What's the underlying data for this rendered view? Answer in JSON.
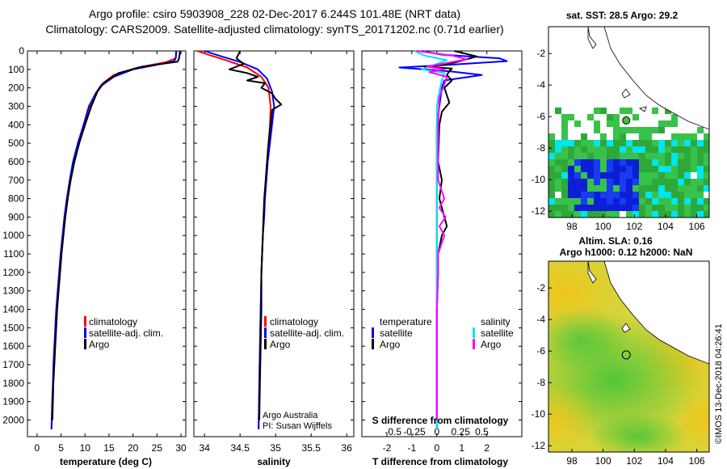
{
  "title_line1": "Argo profile: csiro 5903908_228 02-Dec-2017 6.244S 101.48E (NRT data)",
  "title_line2": "Climatology: CARS2009. Satellite-adjusted climatology: synTS_20171202.nc (0.71d earlier)",
  "colors": {
    "climatology": "#ff0000",
    "satellite": "#0000ff",
    "argo": "#000000",
    "sal_satellite": "#00e5ee",
    "sal_argo": "#ff00ff"
  },
  "chart_data": [
    {
      "type": "line",
      "xlabel": "temperature (deg C)",
      "xlim": [
        -2,
        31
      ],
      "xticks": [
        0,
        5,
        10,
        15,
        20,
        25,
        30
      ],
      "ylim": [
        2090,
        0
      ],
      "yticks": [
        0,
        100,
        200,
        300,
        400,
        500,
        600,
        700,
        800,
        900,
        1000,
        1100,
        1200,
        1300,
        1400,
        1500,
        1600,
        1700,
        1800,
        1900,
        2000
      ],
      "legend": [
        "climatology",
        "satellite-adj. clim.",
        "Argo"
      ],
      "series": [
        {
          "name": "climatology",
          "color": "#ff0000",
          "points": [
            [
              29.1,
              0
            ],
            [
              28.9,
              40
            ],
            [
              27,
              60
            ],
            [
              21,
              90
            ],
            [
              16,
              130
            ],
            [
              13.5,
              180
            ],
            [
              12.2,
              230
            ],
            [
              11,
              300
            ],
            [
              9.8,
              400
            ],
            [
              8.6,
              500
            ],
            [
              7.6,
              600
            ],
            [
              6.9,
              700
            ],
            [
              6.3,
              800
            ],
            [
              5.8,
              900
            ],
            [
              5.4,
              1000
            ],
            [
              5.0,
              1100
            ],
            [
              4.7,
              1200
            ],
            [
              4.4,
              1300
            ],
            [
              4.1,
              1400
            ],
            [
              3.9,
              1500
            ],
            [
              3.7,
              1600
            ],
            [
              3.5,
              1700
            ],
            [
              3.35,
              1800
            ],
            [
              3.2,
              1900
            ],
            [
              3.1,
              2000
            ],
            [
              3.0,
              2050
            ]
          ]
        },
        {
          "name": "satellite-adj. clim.",
          "color": "#0000ff",
          "points": [
            [
              29.0,
              0
            ],
            [
              28.9,
              40
            ],
            [
              28.6,
              55
            ],
            [
              24,
              80
            ],
            [
              20,
              100
            ],
            [
              16,
              140
            ],
            [
              13.3,
              190
            ],
            [
              12,
              240
            ],
            [
              10.8,
              300
            ],
            [
              9.7,
              400
            ],
            [
              8.5,
              500
            ],
            [
              7.5,
              600
            ],
            [
              6.8,
              700
            ],
            [
              6.2,
              800
            ],
            [
              5.7,
              900
            ],
            [
              5.3,
              1000
            ],
            [
              4.9,
              1100
            ],
            [
              4.6,
              1200
            ],
            [
              4.3,
              1300
            ],
            [
              4.0,
              1400
            ],
            [
              3.8,
              1500
            ],
            [
              3.6,
              1600
            ],
            [
              3.4,
              1700
            ],
            [
              3.3,
              1800
            ],
            [
              3.15,
              1900
            ],
            [
              3.05,
              2000
            ],
            [
              3.0,
              2050
            ]
          ]
        },
        {
          "name": "Argo",
          "color": "#000000",
          "points": [
            [
              29.8,
              0
            ],
            [
              29.6,
              40
            ],
            [
              29.3,
              58
            ],
            [
              22,
              85
            ],
            [
              17,
              120
            ],
            [
              14,
              170
            ],
            [
              12.6,
              220
            ],
            [
              11.3,
              300
            ],
            [
              10,
              400
            ],
            [
              8.8,
              500
            ],
            [
              7.8,
              600
            ],
            [
              7.0,
              700
            ],
            [
              6.4,
              800
            ],
            [
              5.9,
              900
            ],
            [
              5.5,
              1000
            ],
            [
              5.1,
              1100
            ],
            [
              4.8,
              1200
            ],
            [
              4.5,
              1300
            ],
            [
              4.2,
              1400
            ],
            [
              4.0,
              1500
            ],
            [
              3.8,
              1600
            ],
            [
              3.6,
              1700
            ],
            [
              3.4,
              1800
            ],
            [
              3.3,
              1900
            ],
            [
              3.2,
              2000
            ]
          ]
        }
      ]
    },
    {
      "type": "line",
      "xlabel": "salinity",
      "xlim": [
        33.85,
        36.1
      ],
      "xticks": [
        34,
        34.5,
        35,
        35.5,
        36
      ],
      "xticklabels": [
        "34",
        "34.5",
        "35",
        "35.5",
        "36"
      ],
      "ylim": [
        2090,
        0
      ],
      "legend": [
        "climatology",
        "satellite-adj. clim.",
        "Argo"
      ],
      "credit": [
        "Argo Australia",
        "PI: Susan Wijffels"
      ],
      "series": [
        {
          "name": "climatology",
          "color": "#ff0000",
          "points": [
            [
              33.9,
              0
            ],
            [
              34.05,
              20
            ],
            [
              34.3,
              50
            ],
            [
              34.6,
              90
            ],
            [
              34.8,
              140
            ],
            [
              34.9,
              200
            ],
            [
              34.93,
              300
            ],
            [
              34.92,
              400
            ],
            [
              34.9,
              500
            ],
            [
              34.88,
              600
            ],
            [
              34.86,
              700
            ],
            [
              34.85,
              800
            ],
            [
              34.83,
              900
            ],
            [
              34.82,
              1000
            ],
            [
              34.81,
              1100
            ],
            [
              34.8,
              1200
            ],
            [
              34.79,
              1400
            ],
            [
              34.78,
              1600
            ],
            [
              34.77,
              1800
            ],
            [
              34.76,
              2050
            ]
          ]
        },
        {
          "name": "satellite-adj. clim.",
          "color": "#0000ff",
          "points": [
            [
              34.0,
              0
            ],
            [
              34.2,
              25
            ],
            [
              34.5,
              60
            ],
            [
              34.75,
              100
            ],
            [
              34.88,
              150
            ],
            [
              34.95,
              220
            ],
            [
              34.98,
              300
            ],
            [
              34.95,
              400
            ],
            [
              34.92,
              500
            ],
            [
              34.89,
              600
            ],
            [
              34.87,
              700
            ],
            [
              34.85,
              800
            ],
            [
              34.84,
              900
            ],
            [
              34.82,
              1000
            ],
            [
              34.81,
              1100
            ],
            [
              34.8,
              1200
            ],
            [
              34.79,
              1400
            ],
            [
              34.78,
              1600
            ],
            [
              34.77,
              1800
            ],
            [
              34.76,
              2050
            ]
          ]
        },
        {
          "name": "Argo",
          "color": "#000000",
          "points": [
            [
              34.5,
              0
            ],
            [
              34.45,
              40
            ],
            [
              34.55,
              70
            ],
            [
              34.35,
              100
            ],
            [
              34.6,
              120
            ],
            [
              34.75,
              140
            ],
            [
              34.6,
              160
            ],
            [
              34.85,
              175
            ],
            [
              34.8,
              200
            ],
            [
              34.95,
              230
            ],
            [
              35.0,
              260
            ],
            [
              35.08,
              290
            ],
            [
              34.95,
              320
            ],
            [
              34.93,
              400
            ],
            [
              34.9,
              500
            ],
            [
              34.88,
              600
            ],
            [
              34.86,
              700
            ],
            [
              34.84,
              800
            ],
            [
              34.83,
              900
            ],
            [
              34.82,
              1000
            ],
            [
              34.81,
              1100
            ],
            [
              34.8,
              1200
            ],
            [
              34.8,
              1400
            ],
            [
              34.79,
              1600
            ],
            [
              34.78,
              1800
            ],
            [
              34.77,
              2000
            ]
          ]
        }
      ]
    },
    {
      "type": "line",
      "xlabel": "T difference from climatology",
      "xlabel_top": "S difference from climatology",
      "xlim": [
        -3,
        3.4
      ],
      "xticks": [
        -2,
        -1,
        0,
        1,
        2
      ],
      "s_xticks": [
        "-0.5",
        "-0.25",
        "0",
        "0.25",
        "0.5"
      ],
      "ylim": [
        2090,
        0
      ],
      "legend_t_title": "temperature",
      "legend_s_title": "salinity",
      "legend_t": [
        "satellite",
        "Argo"
      ],
      "legend_s": [
        "satellite",
        "Argo"
      ],
      "series": [
        {
          "name": "temperature satellite",
          "color": "#0000ff",
          "points": [
            [
              -0.6,
              0
            ],
            [
              0.2,
              20
            ],
            [
              2.5,
              40
            ],
            [
              2.8,
              55
            ],
            [
              0.5,
              75
            ],
            [
              -1.5,
              90
            ],
            [
              0.5,
              110
            ],
            [
              1.8,
              130
            ],
            [
              0.3,
              160
            ],
            [
              0.2,
              200
            ],
            [
              0.1,
              300
            ],
            [
              0,
              400
            ],
            [
              0,
              2050
            ]
          ]
        },
        {
          "name": "temperature Argo",
          "color": "#000000",
          "points": [
            [
              0.7,
              0
            ],
            [
              1.6,
              30
            ],
            [
              0.8,
              60
            ],
            [
              0.3,
              75
            ],
            [
              -0.5,
              85
            ],
            [
              0.6,
              95
            ],
            [
              0.5,
              110
            ],
            [
              0.4,
              130
            ],
            [
              0.6,
              160
            ],
            [
              0.3,
              200
            ],
            [
              0.4,
              240
            ],
            [
              0.5,
              280
            ],
            [
              0.2,
              330
            ],
            [
              0.1,
              400
            ],
            [
              0.05,
              600
            ],
            [
              0.2,
              700
            ],
            [
              0.1,
              800
            ],
            [
              0.3,
              900
            ],
            [
              0.4,
              950
            ],
            [
              0.2,
              1000
            ],
            [
              0.05,
              1100
            ],
            [
              0.05,
              1200
            ],
            [
              0,
              1400
            ],
            [
              0,
              2000
            ]
          ]
        },
        {
          "name": "salinity satellite",
          "color": "#00e5ee",
          "points": [
            [
              -0.9,
              0
            ],
            [
              -0.5,
              25
            ],
            [
              0.4,
              50
            ],
            [
              -0.2,
              80
            ],
            [
              -0.6,
              100
            ],
            [
              0.3,
              120
            ],
            [
              0.2,
              160
            ],
            [
              0.1,
              220
            ],
            [
              0,
              300
            ],
            [
              0,
              2050
            ]
          ]
        },
        {
          "name": "salinity Argo",
          "color": "#ff00ff",
          "points": [
            [
              -0.8,
              0
            ],
            [
              0.6,
              25
            ],
            [
              1.2,
              45
            ],
            [
              0.2,
              70
            ],
            [
              -0.4,
              85
            ],
            [
              0.3,
              100
            ],
            [
              -0.3,
              115
            ],
            [
              0.4,
              140
            ],
            [
              0.3,
              180
            ],
            [
              0.1,
              250
            ],
            [
              0.05,
              400
            ],
            [
              0.05,
              700
            ],
            [
              0.3,
              800
            ],
            [
              0.1,
              850
            ],
            [
              0.35,
              900
            ],
            [
              0.1,
              950
            ],
            [
              0.3,
              1000
            ],
            [
              0.05,
              1100
            ],
            [
              0.05,
              1200
            ],
            [
              0,
              1400
            ],
            [
              0,
              2000
            ]
          ]
        }
      ]
    }
  ],
  "map_top": {
    "title": "sat. SST: 28.5 Argo: 29.2",
    "xticks": [
      "98",
      "100",
      "102",
      "104",
      "106"
    ],
    "yticks": [
      "-2",
      "-4",
      "-6",
      "-8",
      "-10",
      "-12"
    ],
    "xlim": [
      96.5,
      106.8
    ],
    "ylim": [
      -12.4,
      -0.3
    ]
  },
  "map_bottom": {
    "title_line1": "Altim. SLA: 0.16",
    "title_line2": "Argo h1000: 0.12 h2000: NaN",
    "xticks": [
      "98",
      "100",
      "102",
      "104",
      "106"
    ],
    "yticks": [
      "-2",
      "-4",
      "-6",
      "-8",
      "-10",
      "-12"
    ],
    "xlim": [
      96.5,
      106.8
    ],
    "ylim": [
      -12.4,
      -0.3
    ]
  },
  "argo_position": {
    "lon": 101.48,
    "lat": -6.244
  },
  "footer": "©IMOS 13-Dec-2018 04:26:41"
}
